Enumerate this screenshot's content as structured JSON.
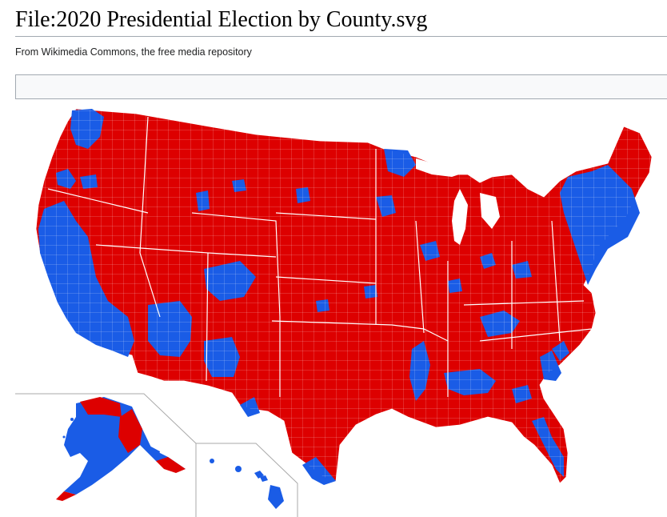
{
  "page": {
    "title": "File:2020 Presidential Election by County.svg",
    "subtitle": "From Wikimedia Commons, the free media repository"
  },
  "map": {
    "insets": [
      "Alaska",
      "Hawaii"
    ]
  },
  "colors": {
    "republican": "#dd0000",
    "democratic": "#1a5ce6",
    "county_border": "#ffffff",
    "inset_border": "#aaaaaa"
  }
}
